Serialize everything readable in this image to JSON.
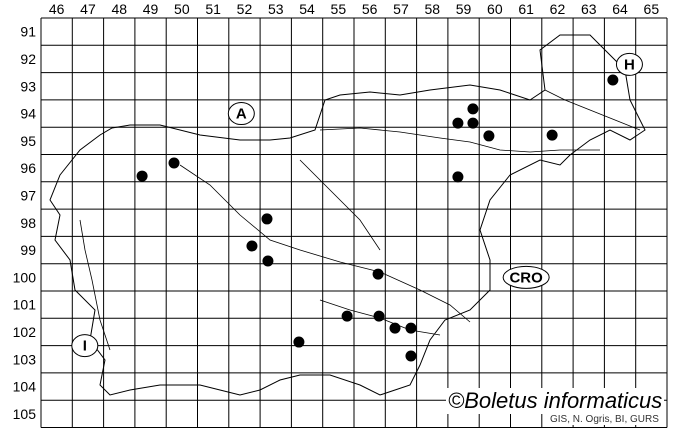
{
  "map": {
    "columns": [
      "46",
      "47",
      "48",
      "49",
      "50",
      "51",
      "52",
      "53",
      "54",
      "55",
      "56",
      "57",
      "58",
      "59",
      "60",
      "61",
      "62",
      "63",
      "64",
      "65"
    ],
    "rows": [
      "91",
      "92",
      "93",
      "94",
      "95",
      "96",
      "97",
      "98",
      "99",
      "100",
      "101",
      "102",
      "103",
      "104",
      "105"
    ],
    "regions": [
      {
        "id": "austria",
        "label": "A",
        "col": 52.4,
        "row": 94.5
      },
      {
        "id": "hungary",
        "label": "H",
        "col": 64.8,
        "row": 92.7
      },
      {
        "id": "croatia",
        "label": "CRO",
        "col": 61.5,
        "row": 100.5
      },
      {
        "id": "italy",
        "label": "I",
        "col": 47.4,
        "row": 103.0
      }
    ],
    "records": [
      {
        "col": 49.23,
        "row": 96.79
      },
      {
        "col": 50.25,
        "row": 96.31
      },
      {
        "col": 53.22,
        "row": 98.36
      },
      {
        "col": 52.74,
        "row": 99.35
      },
      {
        "col": 53.25,
        "row": 99.9
      },
      {
        "col": 54.24,
        "row": 102.87
      },
      {
        "col": 55.78,
        "row": 101.92
      },
      {
        "col": 56.77,
        "row": 100.38
      },
      {
        "col": 56.8,
        "row": 101.92
      },
      {
        "col": 57.31,
        "row": 102.36
      },
      {
        "col": 57.82,
        "row": 102.36
      },
      {
        "col": 57.82,
        "row": 103.38
      },
      {
        "col": 59.32,
        "row": 94.85
      },
      {
        "col": 59.8,
        "row": 94.33
      },
      {
        "col": 59.8,
        "row": 94.85
      },
      {
        "col": 60.31,
        "row": 95.32
      },
      {
        "col": 59.32,
        "row": 96.82
      },
      {
        "col": 62.33,
        "row": 95.29
      },
      {
        "col": 64.27,
        "row": 93.27
      }
    ],
    "record_color": "#000000"
  },
  "watermark": "©Boletus informaticus",
  "credit": "GIS, N. Ogris, BI, GURS"
}
